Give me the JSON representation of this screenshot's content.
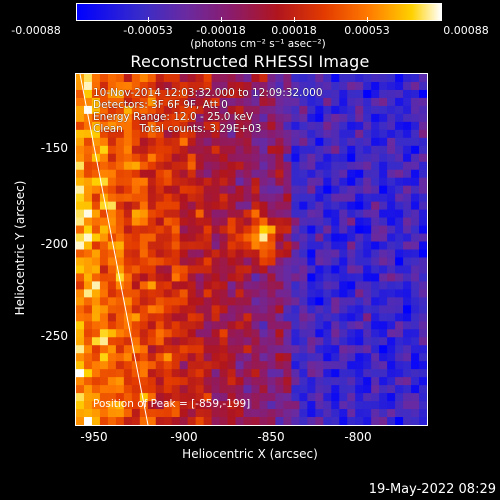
{
  "colorbar": {
    "tick_labels": [
      "-0.00088",
      "-0.00053",
      "-0.00018",
      "0.00018",
      "0.00053",
      "0.00088"
    ],
    "unit_label": "(photons cm⁻² s⁻¹ asec⁻²)",
    "colors": [
      "#0000ff",
      "#6a2aa0",
      "#b0151e",
      "#ff7a00",
      "#ffd100",
      "#ffffff"
    ]
  },
  "title": "Reconstructed RHESSI Image",
  "info": {
    "line1": "10-Nov-2014 12:03:32.000 to 12:09:32.000",
    "line2": "Detectors: 3F 6F 9F, Att 0",
    "line3": "Energy Range: 12.0 - 25.0 keV",
    "line4": "Clean     Total counts: 3.29E+03"
  },
  "peak": "Position of Peak = [-859,-199]",
  "axes": {
    "x_title": "Heliocentric X (arcsec)",
    "y_title": "Heliocentric Y (arcsec)",
    "x_ticks": [
      "-950",
      "-900",
      "-850",
      "-800"
    ],
    "y_ticks": [
      "-150",
      "-200",
      "-250"
    ],
    "x_range": [
      -960,
      -766
    ],
    "y_range": [
      -295,
      -101
    ]
  },
  "footer": "19-May-2022 08:29"
}
